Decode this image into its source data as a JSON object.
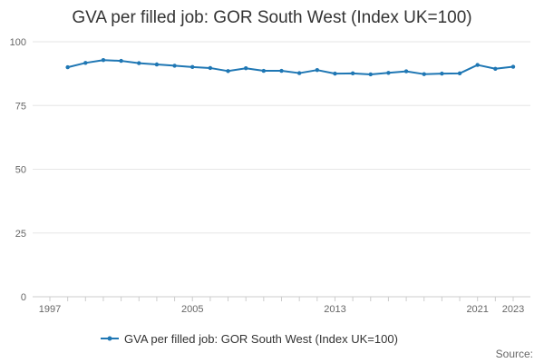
{
  "chart_data": {
    "type": "line",
    "title": "GVA per filled job: GOR South West (Index UK=100)",
    "xlabel": "",
    "ylabel": "",
    "xlim": [
      1997,
      2023
    ],
    "ylim": [
      0,
      100
    ],
    "y_ticks": [
      0,
      25,
      50,
      75,
      100
    ],
    "x_tick_labels": [
      "1997",
      "2005",
      "2013",
      "2021",
      "2023"
    ],
    "grid": "horizontal",
    "legend_position": "bottom",
    "source_label": "Source:",
    "x": [
      1998,
      1999,
      2000,
      2001,
      2002,
      2003,
      2004,
      2005,
      2006,
      2007,
      2008,
      2009,
      2010,
      2011,
      2012,
      2013,
      2014,
      2015,
      2016,
      2017,
      2018,
      2019,
      2020,
      2021,
      2022,
      2023
    ],
    "series": [
      {
        "name": "GVA per filled job: GOR South West (Index UK=100)",
        "color": "#1f77b4",
        "values": [
          90.0,
          91.7,
          92.8,
          92.5,
          91.6,
          91.1,
          90.6,
          90.1,
          89.7,
          88.5,
          89.6,
          88.6,
          88.6,
          87.7,
          88.9,
          87.5,
          87.6,
          87.2,
          87.8,
          88.4,
          87.3,
          87.5,
          87.6,
          90.9,
          89.4,
          90.2
        ]
      }
    ]
  }
}
